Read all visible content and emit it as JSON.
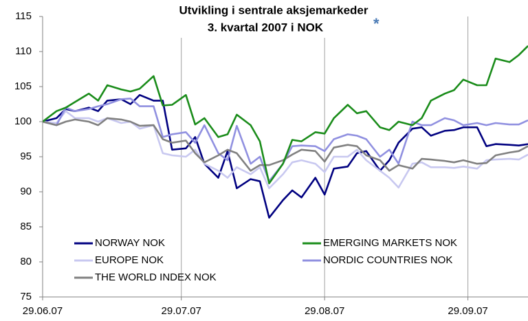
{
  "chart_data": {
    "type": "line",
    "title": [
      "Utvikling i sentrale aksjemarkeder",
      "3. kvartal 2007 i NOK"
    ],
    "annotations": [
      "*"
    ],
    "x": [
      "2007-06-29",
      "2007-07-02",
      "2007-07-04",
      "2007-07-06",
      "2007-07-09",
      "2007-07-11",
      "2007-07-13",
      "2007-07-16",
      "2007-07-18",
      "2007-07-20",
      "2007-07-23",
      "2007-07-25",
      "2007-07-27",
      "2007-07-30",
      "2007-08-01",
      "2007-08-03",
      "2007-08-06",
      "2007-08-08",
      "2007-08-10",
      "2007-08-13",
      "2007-08-15",
      "2007-08-17",
      "2007-08-20",
      "2007-08-22",
      "2007-08-24",
      "2007-08-27",
      "2007-08-29",
      "2007-08-31",
      "2007-09-03",
      "2007-09-05",
      "2007-09-07",
      "2007-09-10",
      "2007-09-12",
      "2007-09-14",
      "2007-09-17",
      "2007-09-19",
      "2007-09-21",
      "2007-09-24",
      "2007-09-26",
      "2007-09-28",
      "2007-10-01",
      "2007-10-03",
      "2007-10-05",
      "2007-10-08",
      "2007-10-10",
      "2007-10-12"
    ],
    "xlim": [
      "2007-06-29",
      "2007-10-12"
    ],
    "xticks": [
      {
        "value": "2007-06-29",
        "label": "29.06.07"
      },
      {
        "value": "2007-07-29",
        "label": "29.07.07"
      },
      {
        "value": "2007-08-29",
        "label": "29.08.07"
      },
      {
        "value": "2007-09-29",
        "label": "29.09.07"
      }
    ],
    "ylim": [
      75,
      115
    ],
    "yticks": [
      75,
      80,
      85,
      90,
      95,
      100,
      105,
      110,
      115
    ],
    "grid": "x",
    "legend": "lower left",
    "series": [
      {
        "name": "NORWAY NOK",
        "color": "#000080",
        "values": [
          100,
          100.5,
          101.8,
          101.5,
          102,
          101.5,
          103,
          103.2,
          102.5,
          103.8,
          103,
          103,
          96,
          96.2,
          97.8,
          94,
          92,
          95.8,
          90.5,
          91.8,
          91.5,
          86.3,
          88.8,
          90.2,
          89.2,
          92,
          89.6,
          93.3,
          93.6,
          95.5,
          95.8,
          93,
          94.5,
          97,
          99,
          99.2,
          98,
          98.7,
          98.8,
          99.2,
          99.2,
          96.5,
          96.8,
          96.7,
          96.6,
          96.8
        ]
      },
      {
        "name": "EMERGING MARKETS NOK",
        "color": "#1a8c1a",
        "values": [
          100,
          101.5,
          102,
          102.8,
          104,
          103,
          105.2,
          104.6,
          104.3,
          104.7,
          106.5,
          102.3,
          102.4,
          103.8,
          99.6,
          100.5,
          97.8,
          98.2,
          101,
          99.5,
          97.2,
          91.2,
          94,
          97.4,
          97.2,
          98.5,
          98.3,
          100.5,
          102.4,
          101.2,
          101.5,
          99.2,
          98.8,
          100,
          99.5,
          100.5,
          103,
          104,
          104.5,
          106,
          105.2,
          105.2,
          109,
          108.5,
          109.5,
          110.8
        ]
      },
      {
        "name": "EUROPE NOK",
        "color": "#c8c8f0",
        "values": [
          100,
          99.8,
          101.5,
          100.5,
          100.5,
          100,
          100.5,
          99.8,
          100,
          99,
          99.5,
          95.5,
          95.2,
          95,
          96,
          94,
          93,
          92,
          93.5,
          92.5,
          93.5,
          90.5,
          92.5,
          94.2,
          94.5,
          94,
          92.8,
          95,
          95,
          96,
          94.5,
          93,
          92,
          90.6,
          94,
          94.2,
          93.5,
          93.5,
          93.4,
          93.6,
          93.3,
          94.5,
          94.6,
          94.7,
          94.6,
          95.3
        ]
      },
      {
        "name": "NORDIC COUNTRIES NOK",
        "color": "#9090e0",
        "values": [
          100,
          99.5,
          102,
          101.5,
          101.8,
          102.2,
          102.5,
          103.2,
          103.3,
          102.2,
          102.2,
          97.8,
          98.2,
          98.5,
          97,
          99.5,
          95.5,
          94.5,
          99.4,
          94,
          95,
          91.5,
          94,
          96.5,
          96.6,
          96.5,
          95.8,
          97.5,
          98.2,
          98,
          97.5,
          95,
          96,
          94,
          100,
          99.5,
          99.5,
          100.5,
          100.2,
          99.5,
          99.8,
          99.5,
          99.8,
          99.6,
          99.6,
          100.2
        ]
      },
      {
        "name": "THE WORLD INDEX NOK",
        "color": "#808080",
        "values": [
          100,
          99.5,
          100,
          100.3,
          100,
          99.5,
          100.5,
          100.3,
          100,
          99.4,
          99.5,
          97.5,
          97,
          97.3,
          95.5,
          94.2,
          95.2,
          96,
          95.5,
          93,
          93.8,
          93.8,
          94.5,
          95.3,
          96,
          95.8,
          94.3,
          96.3,
          96.7,
          96.5,
          95.2,
          94.5,
          93,
          93.8,
          93.3,
          94.7,
          94.6,
          94.4,
          94.2,
          94.5,
          94,
          94.1,
          95.2,
          95.6,
          95.8,
          96.5
        ]
      }
    ]
  }
}
